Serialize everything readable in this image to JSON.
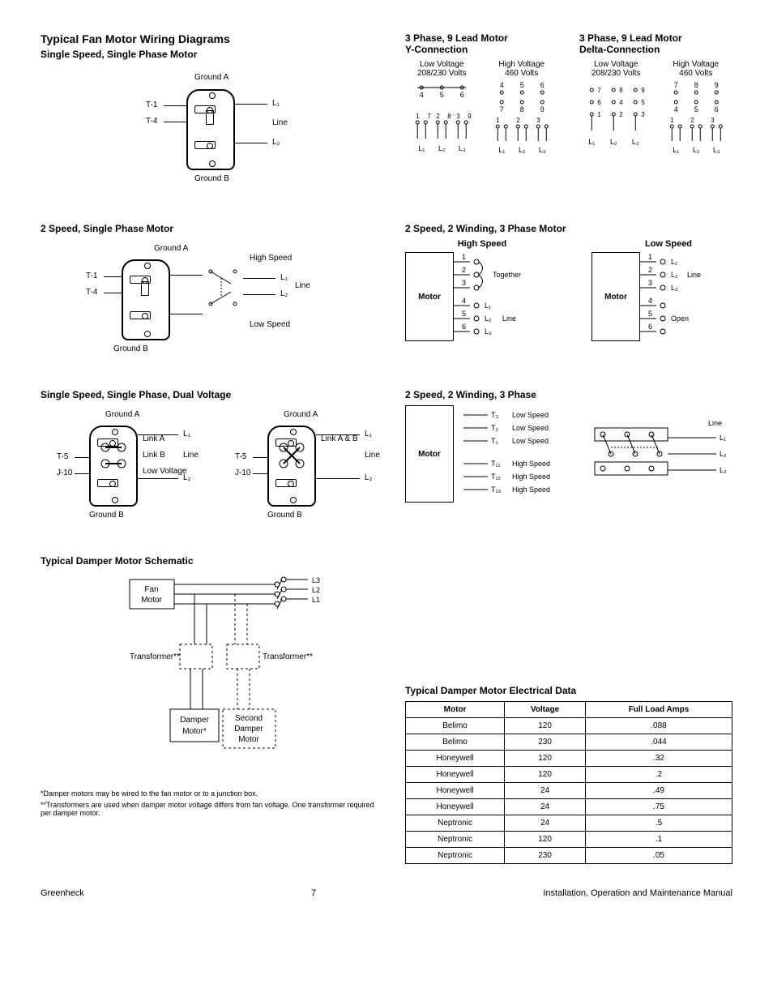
{
  "section_headings": {
    "fig1": "Typical Fan Motor Wiring Diagrams",
    "single_phase": "Single Speed, Single Phase Motor",
    "three_phase": "3 Phase, 9 Lead Motor",
    "y_conn": "Y-Connection",
    "d_conn": "Delta-Connection",
    "two_speed_single": "2 Speed, Single Phase Motor",
    "two_speed_1wind": "2 Speed, 2 Winding, 3 Phase Motor",
    "single_three": "Single Speed, Single Phase, Dual Voltage",
    "two_speed_2wind": "2 Speed, 2 Winding, 3 Phase",
    "damper_block": "Typical Damper Motor Schematic",
    "damper_footnote": "*Damper motors may be wired to the fan motor or to a junction box.",
    "transformer_footnote": "**Transformers are used when damper motor voltage differs from fan voltage. One transformer required per damper motor.",
    "damper_table_title": "Typical Damper Motor Electrical Data"
  },
  "voltage_labels": {
    "low": "Low Voltage",
    "low_v": "208/230 Volts",
    "high": "High Voltage",
    "high_v": "460 Volts"
  },
  "jbox_labels": {
    "ground_a": "Ground A",
    "ground_b": "Ground B",
    "t1": "T-1",
    "t4": "T-4",
    "t5": "T-5",
    "j10": "J-10",
    "l1": "L₁",
    "l2": "L₂",
    "l3": "L₃",
    "line": "Line",
    "high_speed": "High Speed",
    "low_speed": "Low Speed",
    "link_a": "Link A",
    "link_b": "Link B",
    "link_ab": "Link A & B",
    "low_volt": "Low Voltage"
  },
  "nine_lead_y": {
    "low": {
      "top": [
        "4",
        "5",
        "6"
      ],
      "pairs": [
        [
          "1",
          "7"
        ],
        [
          "2",
          "8"
        ],
        [
          "3",
          "9"
        ]
      ],
      "lines": [
        "L₁",
        "L₂",
        "L₃"
      ]
    },
    "high": {
      "top": [
        "4",
        "5",
        "6"
      ],
      "mid": [
        "7",
        "8",
        "9"
      ],
      "bottom_pairs": [
        [
          "1",
          ""
        ],
        [
          "2",
          ""
        ],
        [
          "3",
          ""
        ]
      ],
      "lines": [
        "L₁",
        "L₂",
        "L₃"
      ]
    }
  },
  "nine_lead_d": {
    "low": {
      "pairs": [
        [
          "7",
          "6",
          "1"
        ],
        [
          "8",
          "4",
          "2"
        ],
        [
          "9",
          "5",
          "3"
        ]
      ],
      "lines": [
        "L₁",
        "L₂",
        "L₃"
      ]
    },
    "high": {
      "top": [
        "7",
        "8",
        "9"
      ],
      "mid": [
        "4",
        "5",
        "6"
      ],
      "bottom_pairs": [
        [
          "1",
          ""
        ],
        [
          "2",
          ""
        ],
        [
          "3",
          ""
        ]
      ],
      "lines": [
        "L₁",
        "L₂",
        "L₃"
      ]
    }
  },
  "speed_box": {
    "motor": "Motor",
    "high": "High Speed",
    "low": "Low Speed",
    "together": "Together",
    "open": "Open",
    "line": "Line",
    "high_rows": [
      {
        "n": "1",
        "tag": ""
      },
      {
        "n": "2",
        "tag": "Together"
      },
      {
        "n": "3",
        "tag": ""
      },
      {
        "n": "4",
        "tag": "L₁"
      },
      {
        "n": "5",
        "tag": "L₂  Line"
      },
      {
        "n": "6",
        "tag": "L₃"
      }
    ],
    "low_rows": [
      {
        "n": "1",
        "tag": "L₁"
      },
      {
        "n": "2",
        "tag": "L₂ Line"
      },
      {
        "n": "3",
        "tag": "L₃"
      },
      {
        "n": "4",
        "tag": ""
      },
      {
        "n": "5",
        "tag": "Open"
      },
      {
        "n": "6",
        "tag": ""
      }
    ]
  },
  "two_speed_2w": {
    "motor": "Motor",
    "leads": [
      {
        "t": "T₃",
        "s": "Low Speed"
      },
      {
        "t": "T₂",
        "s": "Low Speed"
      },
      {
        "t": "T₁",
        "s": "Low Speed"
      },
      {
        "t": "T₁₁",
        "s": "High Speed"
      },
      {
        "t": "T₁₂",
        "s": "High Speed"
      },
      {
        "t": "T₁₃",
        "s": "High Speed"
      }
    ],
    "lines": [
      "L₁",
      "L₂",
      "L₃"
    ],
    "line_lbl": "Line"
  },
  "block_diagram": {
    "fan": "Fan\nMotor",
    "trans": "Transformer**",
    "damper": "Damper\nMotor*",
    "second": "Second\nDamper\nMotor",
    "l1": "L1",
    "l2": "L2",
    "l3": "L3"
  },
  "damper_table": {
    "columns": [
      "Motor",
      "Voltage",
      "Full Load Amps"
    ],
    "rows": [
      [
        "Belimo",
        "120",
        ".088"
      ],
      [
        "Belimo",
        "230",
        ".044"
      ],
      [
        "Honeywell",
        "120",
        ".32"
      ],
      [
        "Honeywell",
        "120",
        ".2"
      ],
      [
        "Honeywell",
        "24",
        ".49"
      ],
      [
        "Honeywell",
        "24",
        ".75"
      ],
      [
        "Neptronic",
        "24",
        ".5"
      ],
      [
        "Neptronic",
        "120",
        ".1"
      ],
      [
        "Neptronic",
        "230",
        ".05"
      ]
    ]
  },
  "footer": {
    "brand": "Greenheck",
    "page": "7",
    "doc": "Installation, Operation and Maintenance Manual"
  }
}
